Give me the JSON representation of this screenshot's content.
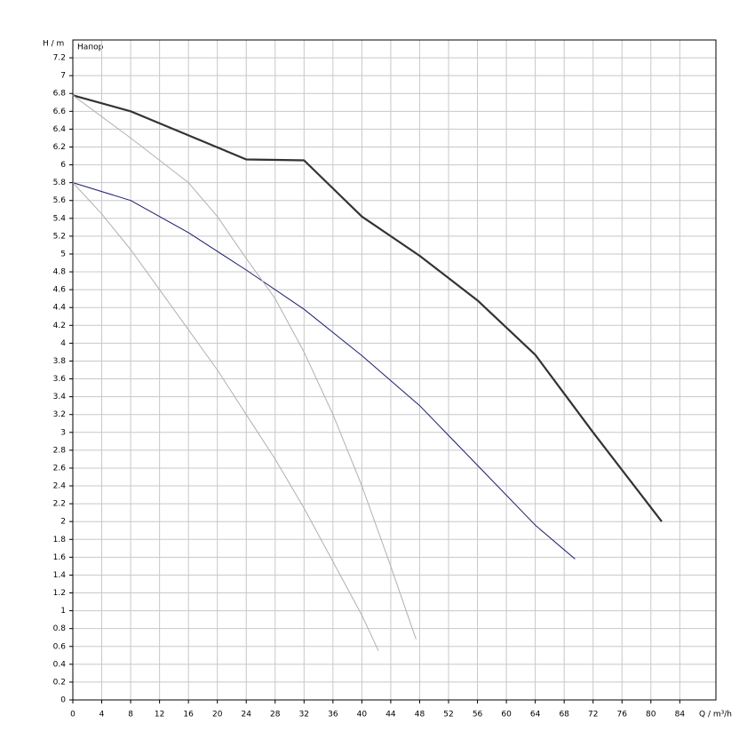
{
  "chart_data": {
    "type": "line",
    "y_label": "H / m",
    "x_label": "Q / m³/h",
    "annotation": "Напор",
    "xlim": [
      0,
      89
    ],
    "ylim": [
      0,
      7.4
    ],
    "xticks": [
      0,
      4,
      8,
      12,
      16,
      20,
      24,
      28,
      32,
      36,
      40,
      44,
      48,
      52,
      56,
      60,
      64,
      68,
      72,
      76,
      80,
      84
    ],
    "yticks": [
      0,
      0.2,
      0.4,
      0.6,
      0.8,
      1,
      1.2,
      1.4,
      1.6,
      1.8,
      2,
      2.2,
      2.4,
      2.6,
      2.8,
      3,
      3.2,
      3.4,
      3.6,
      3.8,
      4,
      4.2,
      4.4,
      4.6,
      4.8,
      5,
      5.2,
      5.4,
      5.6,
      5.8,
      6,
      6.2,
      6.4,
      6.6,
      6.8,
      7,
      7.2
    ],
    "grid": true,
    "series": [
      {
        "color": "#333333",
        "width": 2.2,
        "x": [
          0,
          8,
          16,
          24,
          32,
          40,
          48,
          56,
          64,
          72,
          81.5
        ],
        "values": [
          6.78,
          6.6,
          6.33,
          6.06,
          6.05,
          5.42,
          4.98,
          4.48,
          3.87,
          3.0,
          2.0
        ]
      },
      {
        "color": "#1a1a7a",
        "width": 1,
        "x": [
          0,
          8,
          16,
          24,
          32,
          40,
          48,
          56,
          64,
          69.5
        ],
        "values": [
          5.8,
          5.6,
          5.24,
          4.82,
          4.38,
          3.86,
          3.3,
          2.63,
          1.96,
          1.58
        ]
      },
      {
        "color": "#b0b0b0",
        "width": 1,
        "x": [
          0,
          8,
          16,
          20,
          24,
          28,
          32,
          36,
          40,
          44,
          47.5
        ],
        "values": [
          6.78,
          6.3,
          5.8,
          5.42,
          4.95,
          4.5,
          3.9,
          3.2,
          2.4,
          1.5,
          0.68
        ]
      },
      {
        "color": "#b0b0b0",
        "width": 1,
        "x": [
          0,
          4,
          8,
          12,
          16,
          20,
          24,
          28,
          32,
          36,
          40,
          42.3
        ],
        "values": [
          5.8,
          5.45,
          5.05,
          4.6,
          4.15,
          3.7,
          3.2,
          2.7,
          2.15,
          1.55,
          0.95,
          0.55
        ]
      }
    ]
  }
}
